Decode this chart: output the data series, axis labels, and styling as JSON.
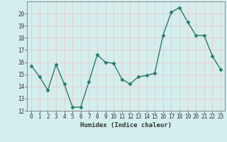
{
  "x": [
    0,
    1,
    2,
    3,
    4,
    5,
    6,
    7,
    8,
    9,
    10,
    11,
    12,
    13,
    14,
    15,
    16,
    17,
    18,
    19,
    20,
    21,
    22,
    23
  ],
  "y": [
    15.7,
    14.8,
    13.7,
    15.8,
    14.2,
    12.3,
    12.3,
    14.4,
    16.6,
    16.0,
    15.9,
    14.6,
    14.2,
    14.8,
    14.9,
    15.1,
    18.2,
    20.1,
    20.5,
    19.3,
    18.2,
    18.2,
    16.5,
    15.4
  ],
  "line_color": "#2a7a6a",
  "marker": "D",
  "markersize": 2.5,
  "linewidth": 1.0,
  "xlabel": "Humidex (Indice chaleur)",
  "bg_color": "#d4eeee",
  "grid_color": "#f0c0c0",
  "ylim": [
    12,
    21
  ],
  "xlim": [
    -0.5,
    23.5
  ],
  "yticks": [
    12,
    13,
    14,
    15,
    16,
    17,
    18,
    19,
    20
  ],
  "xticks": [
    0,
    1,
    2,
    3,
    4,
    5,
    6,
    7,
    8,
    9,
    10,
    11,
    12,
    13,
    14,
    15,
    16,
    17,
    18,
    19,
    20,
    21,
    22,
    23
  ],
  "xlabel_fontsize": 6.5,
  "tick_fontsize": 5.5,
  "spine_color": "#888888"
}
